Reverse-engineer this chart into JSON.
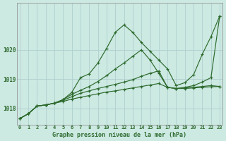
{
  "title": "Graphe pression niveau de la mer (hPa)",
  "background_color": "#cce9e2",
  "grid_color": "#aacccc",
  "line_color": "#2d6a2d",
  "xlim": [
    -0.3,
    23.3
  ],
  "ylim": [
    1017.45,
    1021.6
  ],
  "yticks": [
    1018,
    1019,
    1020
  ],
  "xticks": [
    0,
    1,
    2,
    3,
    4,
    5,
    6,
    7,
    8,
    9,
    10,
    11,
    12,
    13,
    14,
    15,
    16,
    17,
    18,
    19,
    20,
    21,
    22,
    23
  ],
  "s1": [
    1017.65,
    1017.82,
    1018.08,
    1018.12,
    1018.18,
    1018.3,
    1018.55,
    1019.05,
    1019.18,
    1019.55,
    1020.05,
    1020.6,
    1020.85,
    1020.6,
    1020.25,
    1019.95,
    1019.65,
    1019.35,
    1018.78,
    1018.88,
    1019.15,
    1019.85,
    1020.45,
    1021.15
  ],
  "s2": [
    1017.65,
    1017.82,
    1018.08,
    1018.12,
    1018.18,
    1018.3,
    1018.48,
    1018.62,
    1018.75,
    1018.92,
    1019.12,
    1019.35,
    1019.55,
    1019.78,
    1020.0,
    1019.65,
    1019.2,
    1018.72,
    1018.68,
    1018.72,
    1018.78,
    1018.9,
    1019.05,
    1021.15
  ],
  "s3": [
    1017.65,
    1017.82,
    1018.08,
    1018.12,
    1018.18,
    1018.28,
    1018.4,
    1018.52,
    1018.6,
    1018.68,
    1018.75,
    1018.82,
    1018.9,
    1018.98,
    1019.1,
    1019.2,
    1019.28,
    1018.72,
    1018.68,
    1018.7,
    1018.72,
    1018.75,
    1018.78,
    1018.75
  ],
  "s4": [
    1017.65,
    1017.82,
    1018.08,
    1018.12,
    1018.18,
    1018.24,
    1018.32,
    1018.38,
    1018.44,
    1018.5,
    1018.56,
    1018.6,
    1018.65,
    1018.7,
    1018.75,
    1018.8,
    1018.85,
    1018.72,
    1018.68,
    1018.68,
    1018.7,
    1018.72,
    1018.74,
    1018.75
  ]
}
